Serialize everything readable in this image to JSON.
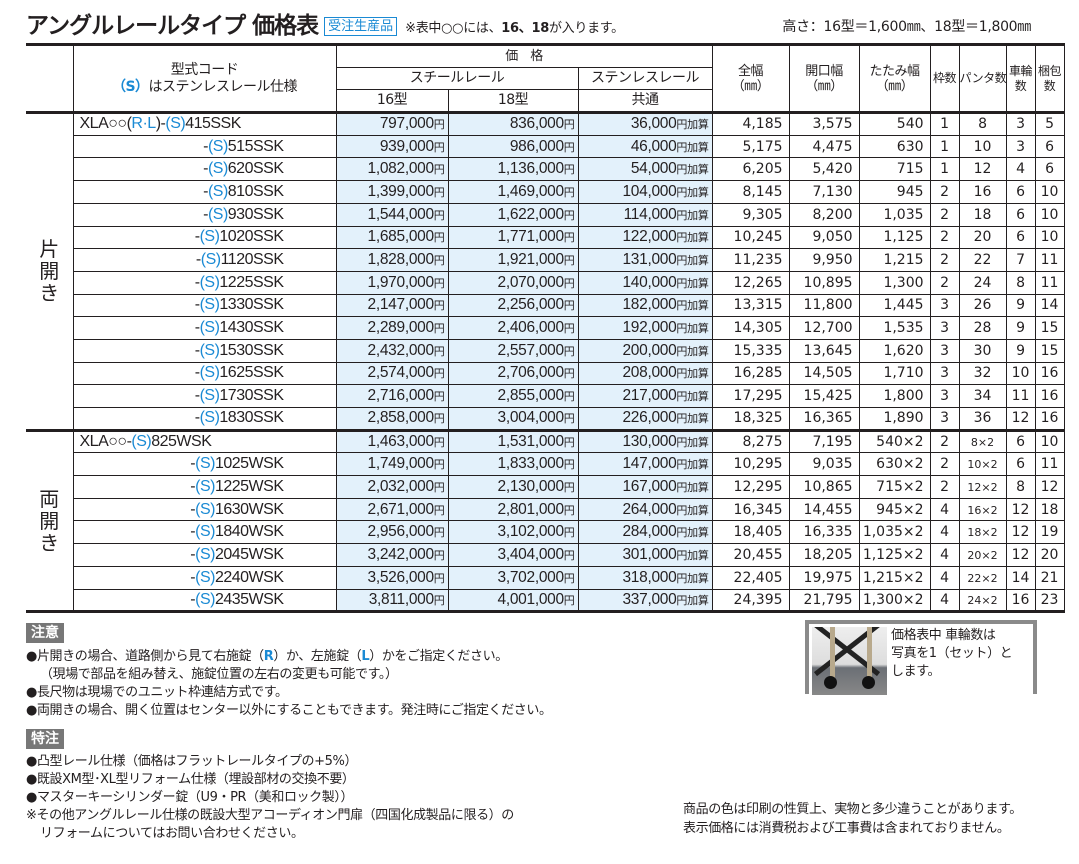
{
  "header": {
    "title": "アングルレールタイプ 価格表",
    "badge": "受注生産品",
    "note_prefix": "※表中○○には、",
    "note_bold": "16、18",
    "note_suffix": "が入ります。",
    "height_note": "高さ：16型＝1,600㎜、18型＝1,800㎜"
  },
  "table": {
    "headers": {
      "code_line1": "型式コード",
      "code_s": "（S）",
      "code_line2": "はステンレスレール仕様",
      "price": "価　格",
      "steel_rail": "スチールレール",
      "type16": "16型",
      "type18": "18型",
      "stainless_rail": "ステンレスレール",
      "common": "共通",
      "total_width": "全幅",
      "opening_width": "開口幅",
      "folded_width": "たたみ幅",
      "mm": "（㎜）",
      "frames": "枠数",
      "panta": "パンタ数",
      "wheels_1": "車輪",
      "wheels_2": "数",
      "packages_1": "梱包",
      "packages_2": "数"
    },
    "yen": "円",
    "add": "円加算",
    "groups": [
      {
        "label": [
          "片",
          "開",
          "き"
        ],
        "rows": [
          {
            "pre": "XLA○○(",
            "rl_r": "R",
            "rl_dot": "·",
            "rl_l": "L",
            "rl_close": ")-",
            "s": "(S)",
            "code": "415SSK",
            "p16": "797,000",
            "p18": "836,000",
            "ps": "36,000",
            "total": "4,185",
            "opening": "3,575",
            "folded": "540",
            "frames": "1",
            "panta": "8",
            "wheels": "3",
            "packages": "5"
          },
          {
            "pre": "-",
            "s": "(S)",
            "code": "515SSK",
            "p16": "939,000",
            "p18": "986,000",
            "ps": "46,000",
            "total": "5,175",
            "opening": "4,475",
            "folded": "630",
            "frames": "1",
            "panta": "10",
            "wheels": "3",
            "packages": "6"
          },
          {
            "pre": "-",
            "s": "(S)",
            "code": "620SSK",
            "p16": "1,082,000",
            "p18": "1,136,000",
            "ps": "54,000",
            "total": "6,205",
            "opening": "5,420",
            "folded": "715",
            "frames": "1",
            "panta": "12",
            "wheels": "4",
            "packages": "6"
          },
          {
            "pre": "-",
            "s": "(S)",
            "code": "810SSK",
            "p16": "1,399,000",
            "p18": "1,469,000",
            "ps": "104,000",
            "total": "8,145",
            "opening": "7,130",
            "folded": "945",
            "frames": "2",
            "panta": "16",
            "wheels": "6",
            "packages": "10"
          },
          {
            "pre": "-",
            "s": "(S)",
            "code": "930SSK",
            "p16": "1,544,000",
            "p18": "1,622,000",
            "ps": "114,000",
            "total": "9,305",
            "opening": "8,200",
            "folded": "1,035",
            "frames": "2",
            "panta": "18",
            "wheels": "6",
            "packages": "10"
          },
          {
            "pre": "-",
            "s": "(S)",
            "code": "1020SSK",
            "p16": "1,685,000",
            "p18": "1,771,000",
            "ps": "122,000",
            "total": "10,245",
            "opening": "9,050",
            "folded": "1,125",
            "frames": "2",
            "panta": "20",
            "wheels": "6",
            "packages": "10"
          },
          {
            "pre": "-",
            "s": "(S)",
            "code": "1120SSK",
            "p16": "1,828,000",
            "p18": "1,921,000",
            "ps": "131,000",
            "total": "11,235",
            "opening": "9,950",
            "folded": "1,215",
            "frames": "2",
            "panta": "22",
            "wheels": "7",
            "packages": "11"
          },
          {
            "pre": "-",
            "s": "(S)",
            "code": "1225SSK",
            "p16": "1,970,000",
            "p18": "2,070,000",
            "ps": "140,000",
            "total": "12,265",
            "opening": "10,895",
            "folded": "1,300",
            "frames": "2",
            "panta": "24",
            "wheels": "8",
            "packages": "11"
          },
          {
            "pre": "-",
            "s": "(S)",
            "code": "1330SSK",
            "p16": "2,147,000",
            "p18": "2,256,000",
            "ps": "182,000",
            "total": "13,315",
            "opening": "11,800",
            "folded": "1,445",
            "frames": "3",
            "panta": "26",
            "wheels": "9",
            "packages": "14"
          },
          {
            "pre": "-",
            "s": "(S)",
            "code": "1430SSK",
            "p16": "2,289,000",
            "p18": "2,406,000",
            "ps": "192,000",
            "total": "14,305",
            "opening": "12,700",
            "folded": "1,535",
            "frames": "3",
            "panta": "28",
            "wheels": "9",
            "packages": "15"
          },
          {
            "pre": "-",
            "s": "(S)",
            "code": "1530SSK",
            "p16": "2,432,000",
            "p18": "2,557,000",
            "ps": "200,000",
            "total": "15,335",
            "opening": "13,645",
            "folded": "1,620",
            "frames": "3",
            "panta": "30",
            "wheels": "9",
            "packages": "15"
          },
          {
            "pre": "-",
            "s": "(S)",
            "code": "1625SSK",
            "p16": "2,574,000",
            "p18": "2,706,000",
            "ps": "208,000",
            "total": "16,285",
            "opening": "14,505",
            "folded": "1,710",
            "frames": "3",
            "panta": "32",
            "wheels": "10",
            "packages": "16"
          },
          {
            "pre": "-",
            "s": "(S)",
            "code": "1730SSK",
            "p16": "2,716,000",
            "p18": "2,855,000",
            "ps": "217,000",
            "total": "17,295",
            "opening": "15,425",
            "folded": "1,800",
            "frames": "3",
            "panta": "34",
            "wheels": "11",
            "packages": "16"
          },
          {
            "pre": "-",
            "s": "(S)",
            "code": "1830SSK",
            "p16": "2,858,000",
            "p18": "3,004,000",
            "ps": "226,000",
            "total": "18,325",
            "opening": "16,365",
            "folded": "1,890",
            "frames": "3",
            "panta": "36",
            "wheels": "12",
            "packages": "16"
          }
        ]
      },
      {
        "label": [
          "両",
          "開",
          "き"
        ],
        "rows": [
          {
            "pre": "XLA○○-",
            "s": "(S)",
            "code": "825WSK",
            "p16": "1,463,000",
            "p18": "1,531,000",
            "ps": "130,000",
            "total": "8,275",
            "opening": "7,195",
            "folded": "540×2",
            "frames": "2",
            "panta": "8×2",
            "wheels": "6",
            "packages": "10"
          },
          {
            "pre": "-",
            "s": "(S)",
            "code": "1025WSK",
            "p16": "1,749,000",
            "p18": "1,833,000",
            "ps": "147,000",
            "total": "10,295",
            "opening": "9,035",
            "folded": "630×2",
            "frames": "2",
            "panta": "10×2",
            "wheels": "6",
            "packages": "11"
          },
          {
            "pre": "-",
            "s": "(S)",
            "code": "1225WSK",
            "p16": "2,032,000",
            "p18": "2,130,000",
            "ps": "167,000",
            "total": "12,295",
            "opening": "10,865",
            "folded": "715×2",
            "frames": "2",
            "panta": "12×2",
            "wheels": "8",
            "packages": "12"
          },
          {
            "pre": "-",
            "s": "(S)",
            "code": "1630WSK",
            "p16": "2,671,000",
            "p18": "2,801,000",
            "ps": "264,000",
            "total": "16,345",
            "opening": "14,455",
            "folded": "945×2",
            "frames": "4",
            "panta": "16×2",
            "wheels": "12",
            "packages": "18"
          },
          {
            "pre": "-",
            "s": "(S)",
            "code": "1840WSK",
            "p16": "2,956,000",
            "p18": "3,102,000",
            "ps": "284,000",
            "total": "18,405",
            "opening": "16,335",
            "folded": "1,035×2",
            "frames": "4",
            "panta": "18×2",
            "wheels": "12",
            "packages": "19"
          },
          {
            "pre": "-",
            "s": "(S)",
            "code": "2045WSK",
            "p16": "3,242,000",
            "p18": "3,404,000",
            "ps": "301,000",
            "total": "20,455",
            "opening": "18,205",
            "folded": "1,125×2",
            "frames": "4",
            "panta": "20×2",
            "wheels": "12",
            "packages": "20"
          },
          {
            "pre": "-",
            "s": "(S)",
            "code": "2240WSK",
            "p16": "3,526,000",
            "p18": "3,702,000",
            "ps": "318,000",
            "total": "22,405",
            "opening": "19,975",
            "folded": "1,215×2",
            "frames": "4",
            "panta": "22×2",
            "wheels": "14",
            "packages": "21"
          },
          {
            "pre": "-",
            "s": "(S)",
            "code": "2435WSK",
            "p16": "3,811,000",
            "p18": "4,001,000",
            "ps": "337,000",
            "total": "24,395",
            "opening": "21,795",
            "folded": "1,300×2",
            "frames": "4",
            "panta": "24×2",
            "wheels": "16",
            "packages": "23"
          }
        ]
      }
    ]
  },
  "caution": {
    "label": "注意",
    "line1_a": "●片開きの場合、道路側から見て右施錠（",
    "line1_r": "R",
    "line1_b": "）か、左施錠（",
    "line1_l": "L",
    "line1_c": "）かをご指定ください。",
    "line2": "（現場で部品を組み替え、施錠位置の左右の変更も可能です。）",
    "line3": "●長尺物は現場でのユニット枠連結方式です。",
    "line4": "●両開きの場合、開く位置はセンター以外にすることもできます。発注時にご指定ください。"
  },
  "special": {
    "label": "特注",
    "items": [
      "●凸型レール仕様（価格はフラットレールタイプの+5%）",
      "●既設XM型･XL型リフォーム仕様（埋設部材の交換不要）",
      "●マスターキーシリンダー錠（U9・PR（美和ロック製））",
      "※その他アングルレール仕様の既設大型アコーディオン門扉（四国化成製品に限る）の",
      "リフォームについてはお問い合わせください。"
    ]
  },
  "photo_note": {
    "lines": [
      "価格表中 車輪数は",
      "写真を1（セット）と",
      "します。"
    ]
  },
  "disclaimer": {
    "lines": [
      "商品の色は印刷の性質上、実物と多少違うことがあります。",
      "表示価格には消費税および工事費は含まれておりません。"
    ]
  }
}
